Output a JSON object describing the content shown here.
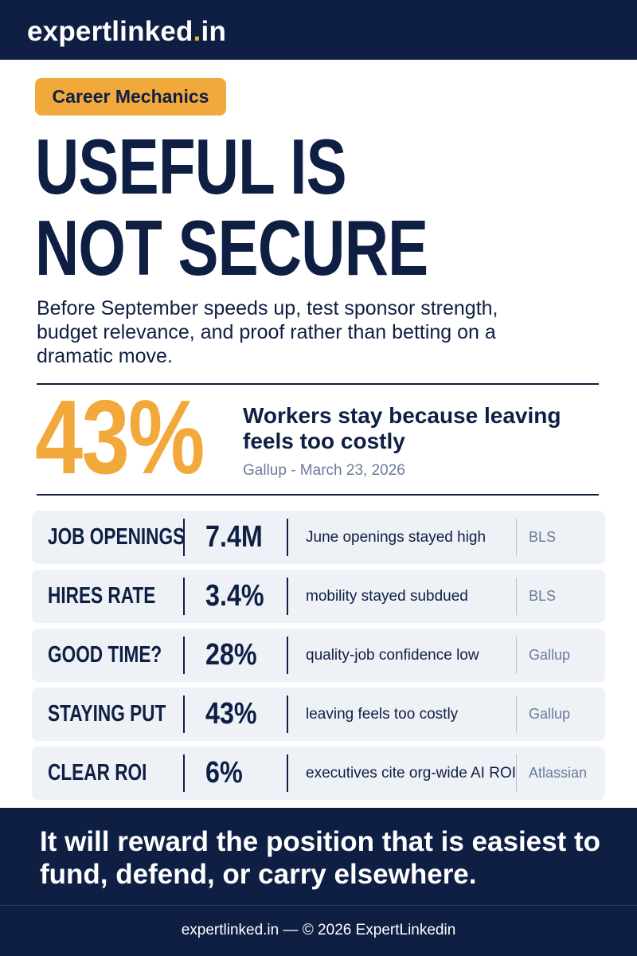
{
  "brand": {
    "name": "expertlinked",
    "dot": ".",
    "tld": "in"
  },
  "tag": "Career Mechanics",
  "headline": {
    "line1": "USEFUL IS",
    "line2": "NOT SECURE"
  },
  "intro": "Before September speeds up, test sponsor strength, budget relevance, and proof rather than betting on a dramatic move.",
  "feature": {
    "value": "43%",
    "title": "Workers stay because leaving feels too costly",
    "source": "Gallup - March 23, 2026"
  },
  "rows": [
    {
      "label": "JOB OPENINGS",
      "value": "7.4M",
      "note": "June openings stayed high",
      "source": "BLS"
    },
    {
      "label": "HIRES RATE",
      "value": "3.4%",
      "note": "mobility stayed subdued",
      "source": "BLS"
    },
    {
      "label": "GOOD TIME?",
      "value": "28%",
      "note": "quality-job confidence low",
      "source": "Gallup"
    },
    {
      "label": "STAYING PUT",
      "value": "43%",
      "note": "leaving feels too costly",
      "source": "Gallup"
    },
    {
      "label": "CLEAR ROI",
      "value": "6%",
      "note": "executives cite org-wide AI ROI",
      "source": "Atlassian"
    }
  ],
  "closing": "It will reward the position that is easiest to fund, defend, or carry elsewhere.",
  "footer": "expertlinked.in — © 2026 ExpertLinkedin",
  "colors": {
    "navy": "#0f1f44",
    "accent": "#f2a93b",
    "muted": "#6a7c9a",
    "row_bg": "#eef1f6"
  }
}
